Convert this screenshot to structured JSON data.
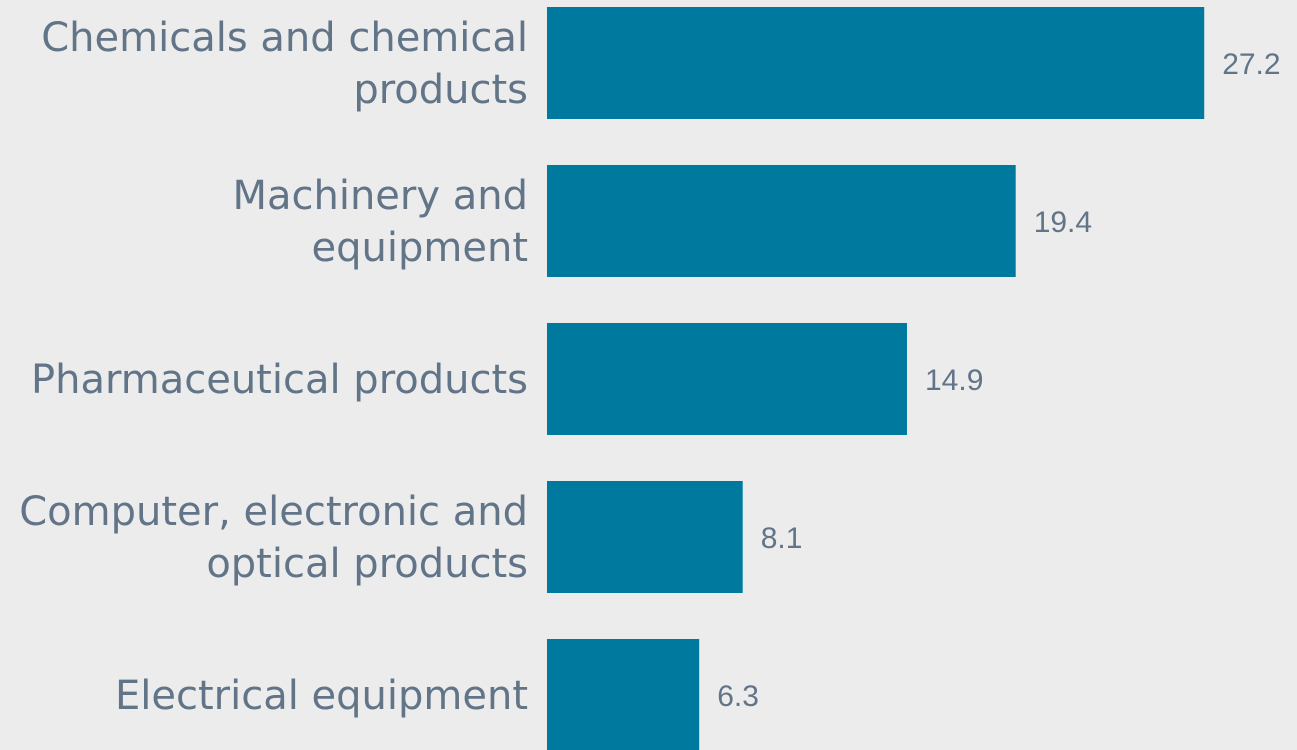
{
  "colors": {
    "background": "#ececec",
    "bar": "#00799f",
    "text": "#627488"
  },
  "chart_data": {
    "type": "bar",
    "orientation": "horizontal",
    "categories": [
      [
        "Chemicals and chemical",
        "products"
      ],
      [
        "Machinery and",
        "equipment"
      ],
      [
        "Pharmaceutical products"
      ],
      [
        "Computer, electronic and",
        "optical products"
      ],
      [
        "Electrical equipment"
      ]
    ],
    "values": [
      27.2,
      19.4,
      14.9,
      8.1,
      6.3
    ],
    "value_labels": [
      "27.2",
      "19.4",
      "14.9",
      "8.1",
      "6.3"
    ],
    "title": "",
    "xlabel": "",
    "ylabel": "",
    "legend": "none",
    "grid": false
  }
}
